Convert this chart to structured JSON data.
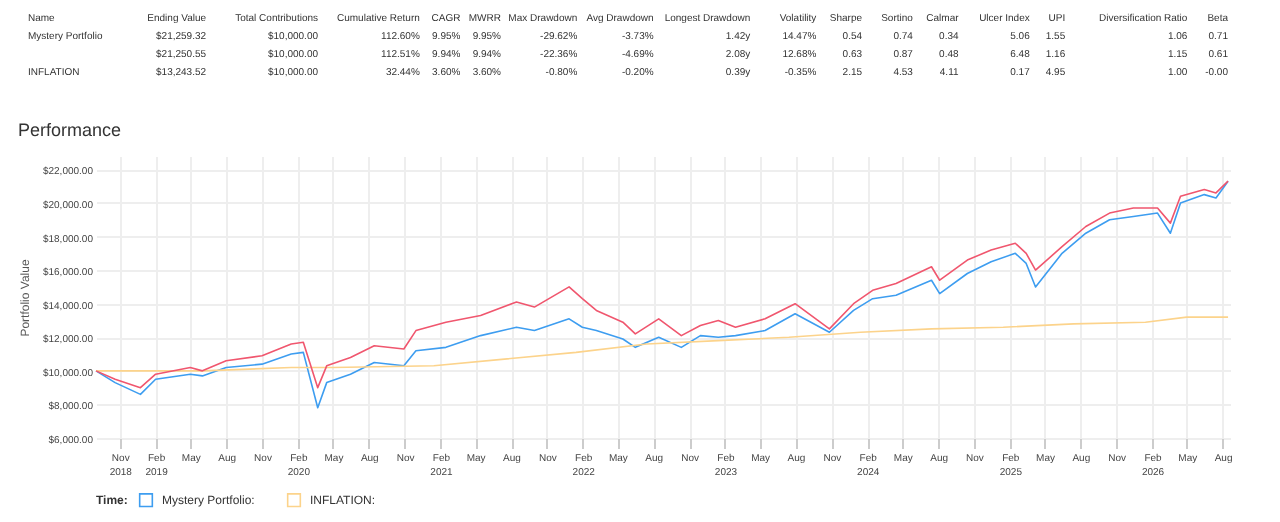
{
  "chart_data": [
    {
      "type": "other",
      "categories": [
        "Name",
        "Ending Value",
        "Total Contributions",
        "Cumulative Return",
        "CAGR",
        "MWRR",
        "Max Drawdown",
        "Avg Drawdown",
        "Longest Drawdown",
        "Volatility",
        "Sharpe",
        "Sortino",
        "Calmar",
        "Ulcer Index",
        "UPI",
        "Diversification Ratio",
        "Beta"
      ],
      "annotations": [
        "Mystery Portfolio",
        "$21,259.32",
        "$10,000.00",
        "112.60%",
        "9.95%",
        "9.95%",
        "-29.62%",
        "-3.73%",
        "1.42y",
        "14.47%",
        "0.54",
        "0.74",
        "0.34",
        "5.06",
        "1.55",
        "1.06",
        "0.71",
        null,
        "$21,250.55",
        "$10,000.00",
        "112.51%",
        "9.94%",
        "9.94%",
        "-22.36%",
        "-4.69%",
        "2.08y",
        "12.68%",
        "0.63",
        "0.87",
        "0.48",
        "6.48",
        "1.16",
        "1.15",
        "0.61",
        "INFLATION",
        "$13,243.52",
        "$10,000.00",
        "32.44%",
        "3.60%",
        "3.60%",
        "-0.80%",
        "-0.20%",
        "0.39y",
        "-0.35%",
        "2.15",
        "4.53",
        "4.11",
        "0.17",
        "4.95",
        "1.00",
        "-0.00"
      ]
    },
    {
      "type": "line",
      "title": "Performance",
      "ylabel": "Portfolio Value",
      "legend_title": "Time:",
      "legend": "bottom",
      "grid": true,
      "xlim": [
        "2018-09-01",
        "2026-08-20"
      ],
      "xticks": [
        {
          "value": "2018-11",
          "label": "Nov 2018"
        },
        {
          "value": "2019-02",
          "label": "Feb 2019"
        },
        {
          "value": "2019-05",
          "label": "May"
        },
        {
          "value": "2019-08",
          "label": "Aug"
        },
        {
          "value": "2019-11",
          "label": "Nov"
        },
        {
          "value": "2020-02",
          "label": "Feb 2020"
        },
        {
          "value": "2020-05",
          "label": "May"
        },
        {
          "value": "2020-08",
          "label": "Aug"
        },
        {
          "value": "2020-11",
          "label": "Nov"
        },
        {
          "value": "2021-02",
          "label": "Feb 2021"
        },
        {
          "value": "2021-05",
          "label": "May"
        },
        {
          "value": "2021-08",
          "label": "Aug"
        },
        {
          "value": "2021-11",
          "label": "Nov"
        },
        {
          "value": "2022-02",
          "label": "Feb 2022"
        },
        {
          "value": "2022-05",
          "label": "May"
        },
        {
          "value": "2022-08",
          "label": "Aug"
        },
        {
          "value": "2022-11",
          "label": "Nov"
        },
        {
          "value": "2023-02",
          "label": "Feb 2023"
        },
        {
          "value": "2023-05",
          "label": "May"
        },
        {
          "value": "2023-08",
          "label": "Aug"
        },
        {
          "value": "2023-11",
          "label": "Nov"
        },
        {
          "value": "2024-02",
          "label": "Feb 2024"
        },
        {
          "value": "2024-05",
          "label": "May"
        },
        {
          "value": "2024-08",
          "label": "Aug"
        },
        {
          "value": "2024-11",
          "label": "Nov"
        },
        {
          "value": "2025-02",
          "label": "Feb 2025"
        },
        {
          "value": "2025-05",
          "label": "May"
        },
        {
          "value": "2025-08",
          "label": "Aug"
        },
        {
          "value": "2025-11",
          "label": "Nov"
        },
        {
          "value": "2026-02",
          "label": "Feb 2026"
        },
        {
          "value": "2026-05",
          "label": "May"
        },
        {
          "value": "2026-08",
          "label": "Aug"
        }
      ],
      "ylim": [
        6000,
        22800
      ],
      "yticks": [
        {
          "value": 6000,
          "label": "$6,000.00"
        },
        {
          "value": 8000,
          "label": "$8,000.00"
        },
        {
          "value": 10000,
          "label": "$10,000.00"
        },
        {
          "value": 12000,
          "label": "$12,000.00"
        },
        {
          "value": 14000,
          "label": "$14,000.00"
        },
        {
          "value": 16000,
          "label": "$16,000.00"
        },
        {
          "value": 18000,
          "label": "$18,000.00"
        },
        {
          "value": 20000,
          "label": "$20,000.00"
        },
        {
          "value": 22000,
          "label": "$22,000.00"
        }
      ],
      "x": [
        "2018-09-01",
        "2018-10-20",
        "2018-12-24",
        "2019-02-01",
        "2019-05-01",
        "2019-06-01",
        "2019-08-01",
        "2019-11-01",
        "2020-01-15",
        "2020-02-15",
        "2020-03-23",
        "2020-04-15",
        "2020-06-15",
        "2020-08-15",
        "2020-10-30",
        "2020-11-30",
        "2021-02-15",
        "2021-05-15",
        "2021-08-15",
        "2021-09-30",
        "2021-12-28",
        "2022-01-31",
        "2022-03-08",
        "2022-05-15",
        "2022-06-16",
        "2022-08-15",
        "2022-10-12",
        "2022-11-30",
        "2023-01-15",
        "2023-02-28",
        "2023-05-15",
        "2023-07-31",
        "2023-10-27",
        "2023-12-28",
        "2024-02-15",
        "2024-04-15",
        "2024-07-15",
        "2024-08-05",
        "2024-10-15",
        "2024-12-15",
        "2025-02-15",
        "2025-03-15",
        "2025-04-08",
        "2025-06-15",
        "2025-08-15",
        "2025-10-15",
        "2025-12-15",
        "2026-02-15",
        "2026-03-20",
        "2026-04-15",
        "2026-06-15",
        "2026-07-15",
        "2026-08-15"
      ],
      "series": [
        {
          "name": "Mystery Portfolio:",
          "color": "#3d9df0",
          "values": [
            10000,
            9300,
            8600,
            9500,
            9800,
            9700,
            10200,
            10400,
            11000,
            11100,
            7800,
            9300,
            9800,
            10500,
            10300,
            11200,
            11400,
            12100,
            12600,
            12400,
            13100,
            12600,
            12400,
            11900,
            11400,
            12000,
            11400,
            12100,
            12000,
            12100,
            12400,
            13400,
            12300,
            13600,
            14300,
            14500,
            15400,
            14600,
            15800,
            16500,
            17000,
            16400,
            15000,
            17000,
            18200,
            19000,
            19200,
            19400,
            18200,
            20000,
            20500,
            20300,
            21300
          ]
        },
        {
          "color": "#f0566e",
          "values": [
            10000,
            9500,
            9000,
            9800,
            10200,
            10000,
            10600,
            10900,
            11600,
            11700,
            9000,
            10300,
            10800,
            11500,
            11300,
            12400,
            12900,
            13300,
            14100,
            13800,
            15000,
            14300,
            13600,
            12900,
            12200,
            13100,
            12100,
            12700,
            13000,
            12600,
            13100,
            14000,
            12500,
            14000,
            14800,
            15200,
            16200,
            15400,
            16600,
            17200,
            17600,
            17000,
            16000,
            17400,
            18600,
            19400,
            19700,
            19700,
            18800,
            20400,
            20800,
            20600,
            21300
          ]
        },
        {
          "name": "INFLATION:",
          "color": "#fcd38b",
          "x": [
            "2018-09-01",
            "2019-06-01",
            "2020-01-15",
            "2020-05-01",
            "2021-01-15",
            "2021-07-15",
            "2022-01-15",
            "2022-07-15",
            "2023-01-15",
            "2023-07-15",
            "2024-01-15",
            "2024-07-15",
            "2025-01-15",
            "2025-07-15",
            "2026-01-15",
            "2026-05-01",
            "2026-08-15"
          ],
          "values": [
            10000,
            10000,
            10200,
            10200,
            10300,
            10700,
            11100,
            11600,
            11800,
            12000,
            12300,
            12500,
            12600,
            12800,
            12900,
            13200,
            13200
          ]
        }
      ]
    }
  ]
}
